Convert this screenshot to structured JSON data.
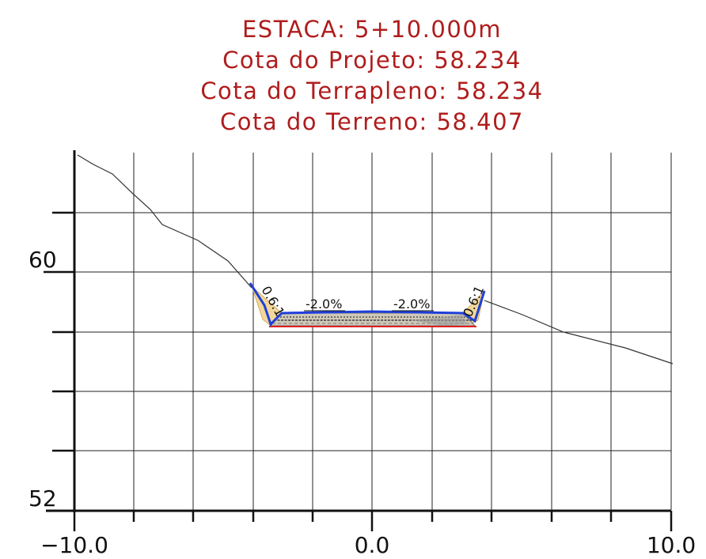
{
  "header": {
    "estaca": "ESTACA: 5+10.000m",
    "cota_projeto": "Cota do Projeto: 58.234",
    "cota_terrapleno": "Cota do Terrapleno: 58.234",
    "cota_terreno": "Cota do Terreno:  58.407"
  },
  "axes": {
    "x_ticks": [
      {
        "value": -10,
        "label": "−10.0"
      },
      {
        "value": 0,
        "label": "0.0"
      },
      {
        "value": 10,
        "label": "10.0"
      }
    ],
    "y_ticks": [
      {
        "value": 60,
        "label": "60"
      },
      {
        "value": 52,
        "label": "52"
      }
    ],
    "x_range": [
      -10,
      10
    ],
    "y_range": [
      52,
      62
    ]
  },
  "section": {
    "left_slope_label": "0.6:1",
    "right_slope_label": "0.6:1",
    "left_crossfall": "-2.0%",
    "right_crossfall": "-2.0%",
    "colors": {
      "title": "#b01c1c",
      "pavement_top": "#1f3fd8",
      "subgrade": "#e02020",
      "fill": "#f2d79a",
      "terrain": "#333333"
    }
  }
}
